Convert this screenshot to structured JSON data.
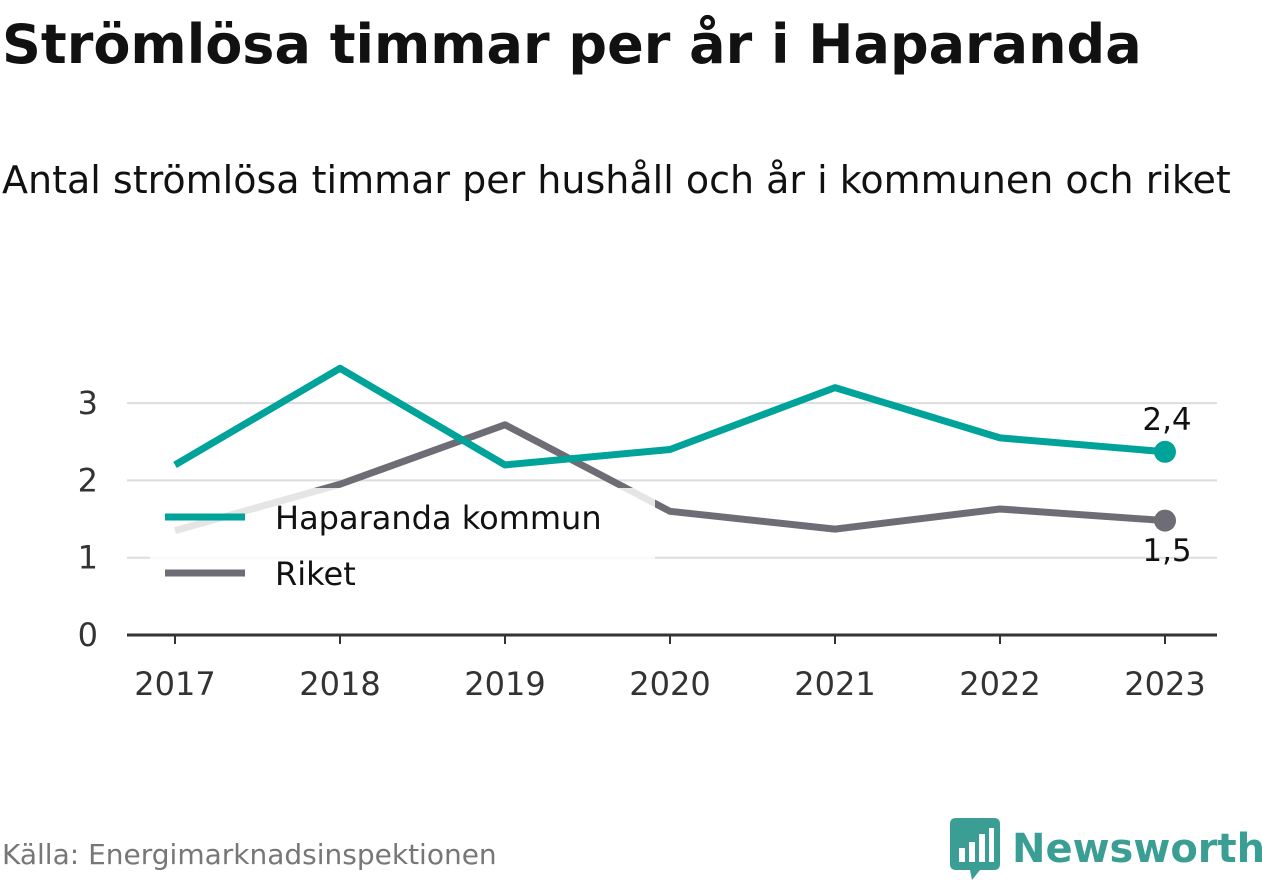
{
  "chart_data": {
    "type": "line",
    "title": "Strömlösa timmar per år i Haparanda",
    "subtitle": "Antal strömlösa timmar per hushåll och år i kommunen och riket",
    "x": [
      "2017",
      "2018",
      "2019",
      "2020",
      "2021",
      "2022",
      "2023"
    ],
    "series": [
      {
        "name": "Haparanda kommun",
        "color": "#00a39a",
        "values": [
          2.2,
          3.45,
          2.2,
          2.4,
          3.2,
          2.55,
          2.37
        ]
      },
      {
        "name": "Riket",
        "color": "#6e6d75",
        "values": [
          1.35,
          1.95,
          2.72,
          1.6,
          1.37,
          1.63,
          1.48
        ]
      }
    ],
    "end_labels": [
      "2,4",
      "1,5"
    ],
    "yticks": [
      "0",
      "1",
      "2",
      "3"
    ],
    "ylim": [
      0,
      3.6
    ],
    "grid": true,
    "legend_position": "middle-left",
    "xlabel": "",
    "ylabel": ""
  },
  "source": "Källa: Energimarknadsinspektionen",
  "brand": {
    "name": "Newsworthy",
    "color": "#3a9e94",
    "icon": "newsworthy-logo-icon"
  }
}
